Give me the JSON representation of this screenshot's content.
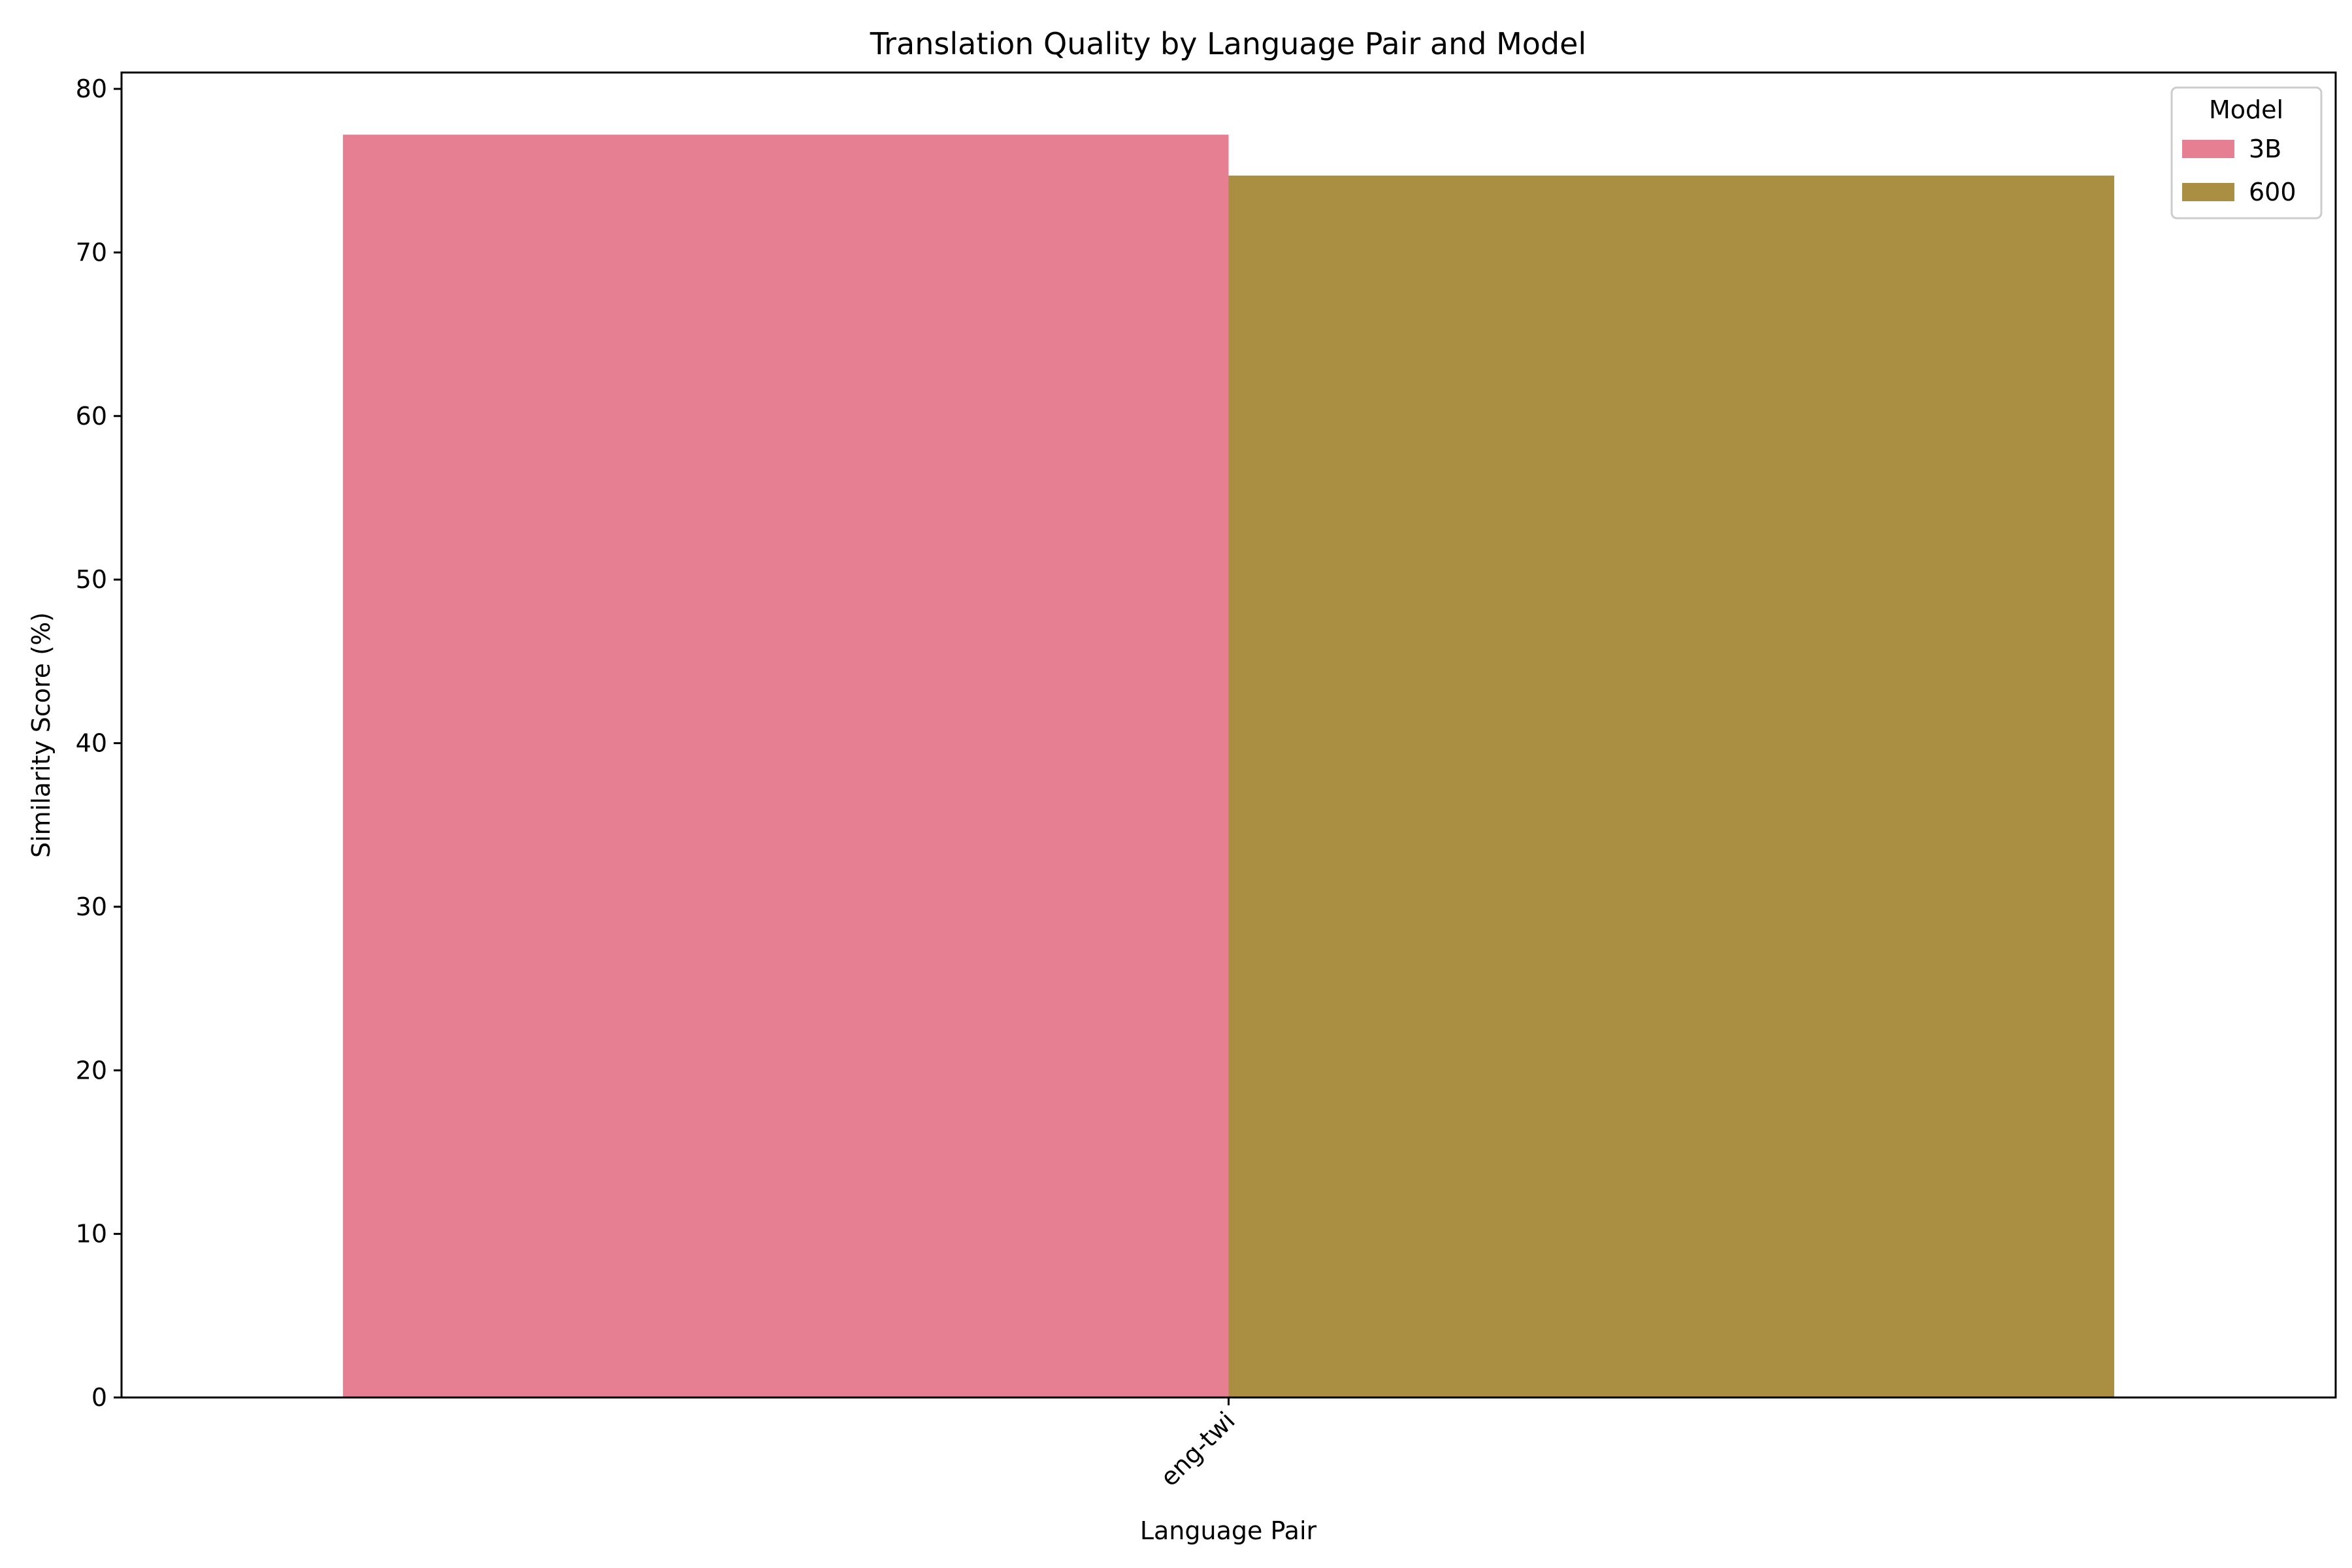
{
  "chart_data": {
    "type": "bar",
    "title": "Translation Quality by Language Pair and Model",
    "xlabel": "Language Pair",
    "ylabel": "Similarity Score (%)",
    "categories": [
      "eng-twi"
    ],
    "ylim": [
      0,
      81
    ],
    "yticks": [
      0,
      10,
      20,
      30,
      40,
      50,
      60,
      70,
      80
    ],
    "grid": false,
    "legend": {
      "title": "Model",
      "placement": "top-right"
    },
    "series": [
      {
        "name": "3B",
        "values": [
          77.2
        ],
        "color": "#e77f93"
      },
      {
        "name": "600",
        "values": [
          74.7
        ],
        "color": "#aa8f42"
      }
    ]
  }
}
